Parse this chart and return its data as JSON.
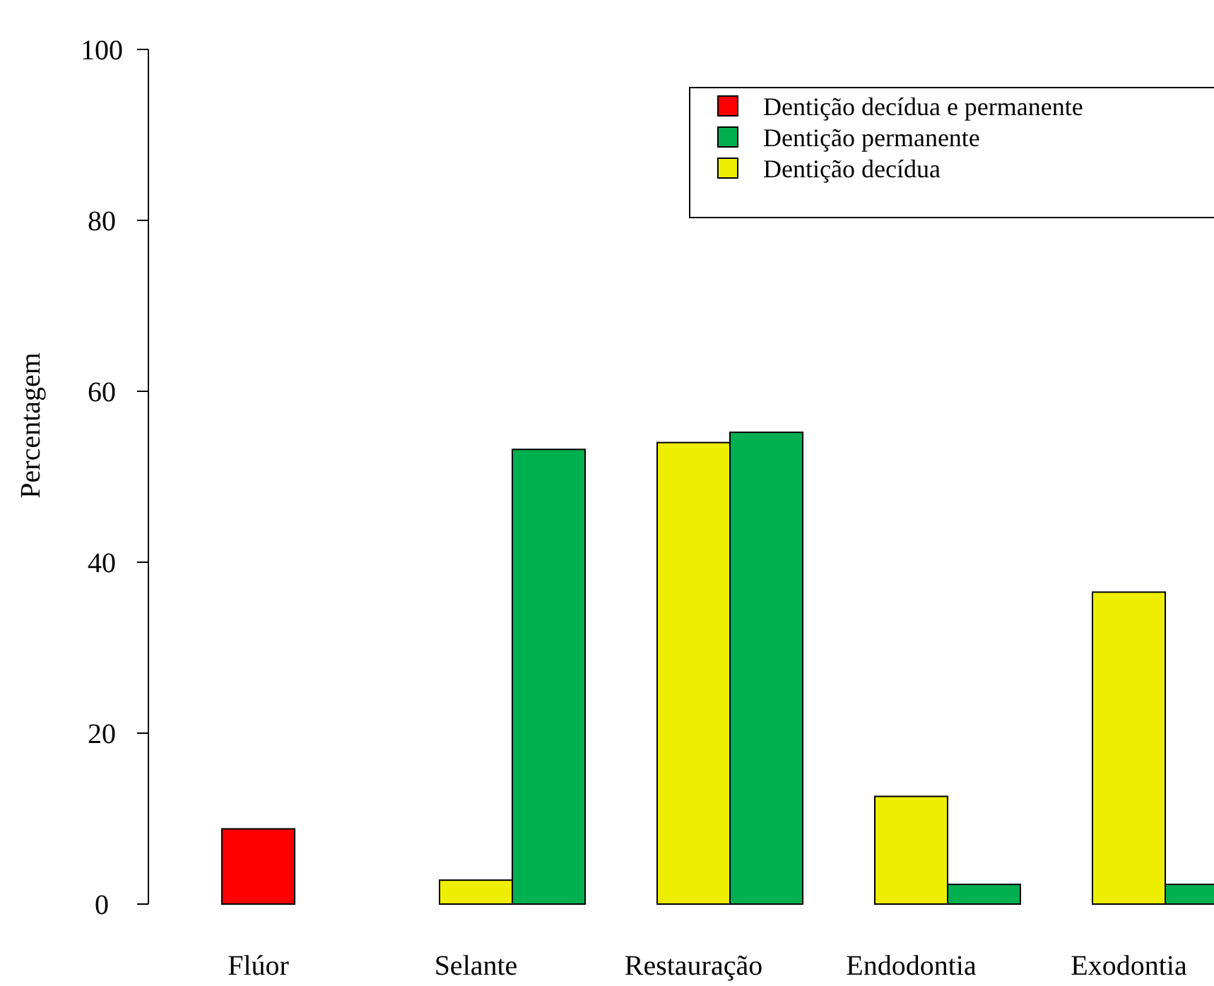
{
  "chart_data": {
    "type": "bar",
    "ylabel": "Percentagem",
    "categories": [
      "Flúor",
      "Selante",
      "Restauração",
      "Endodontia",
      "Exodontia"
    ],
    "series": [
      {
        "name": "Dentição decídua e permanente",
        "color": "#ff0000",
        "values": [
          8.8,
          null,
          null,
          null,
          null
        ]
      },
      {
        "name": "Dentição permanente",
        "color": "#00b050",
        "values": [
          null,
          53.2,
          55.2,
          2.3,
          2.3
        ]
      },
      {
        "name": "Dentição decídua",
        "color": "#eeee00",
        "values": [
          null,
          2.8,
          54.0,
          12.6,
          36.5
        ]
      }
    ],
    "ylim": [
      0,
      100
    ],
    "yticks": [
      0,
      20,
      40,
      60,
      80,
      100
    ],
    "legend": "top right",
    "grid": false
  }
}
